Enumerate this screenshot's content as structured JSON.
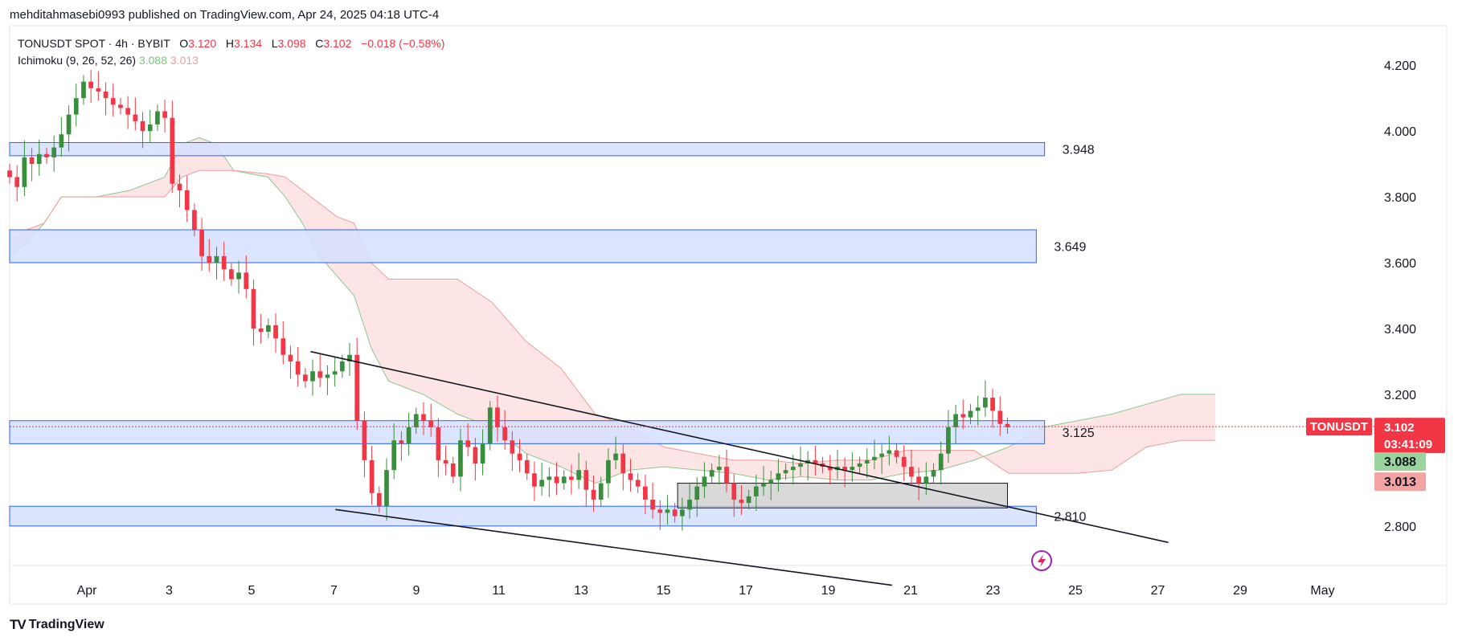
{
  "header": {
    "published": "mehditahmasebi0993 published on TradingView.com, Apr 24, 2025 04:18 UTC-4"
  },
  "legend": {
    "symbol": "TONUSDT SPOT · 4h · BYBIT",
    "o_label": "O",
    "o_value": "3.120",
    "h_label": "H",
    "h_value": "3.134",
    "l_label": "L",
    "l_value": "3.098",
    "c_label": "C",
    "c_value": "3.102",
    "change": "−0.018 (−0.58%)",
    "indicator": "Ichimoku (9, 26, 52, 26)",
    "ind_value1": "3.088",
    "ind_value2": "3.013"
  },
  "branding": {
    "name": "TradingView"
  },
  "colors": {
    "up": "#26a69a",
    "up_dark": "#388e3c",
    "down": "#f23645",
    "zone_fill": "#d6e0ff",
    "zone_stroke": "#2962ff",
    "cloud_bear": "#fbe0df",
    "cloud_bull": "#e3f3e3"
  },
  "chart_data": {
    "type": "candlestick",
    "symbol": "TONUSDT",
    "timeframe": "4h",
    "y_ticks": [
      "4.200",
      "4.000",
      "3.800",
      "3.600",
      "3.400",
      "3.200",
      "2.800"
    ],
    "x_ticks": [
      "Apr",
      "3",
      "5",
      "7",
      "9",
      "11",
      "13",
      "15",
      "17",
      "19",
      "21",
      "23",
      "25",
      "27",
      "29",
      "May"
    ],
    "ylim": [
      2.68,
      4.32
    ],
    "price_tag": {
      "label": "TONUSDT",
      "value": "3.102",
      "countdown": "03:41:09"
    },
    "cloud_tags": [
      "3.088",
      "3.013"
    ],
    "zones": [
      {
        "label": "3.948",
        "top": 3.965,
        "bottom": 3.925,
        "x_start": 0.0,
        "x_end": 25.1
      },
      {
        "label": "3.649",
        "top": 3.7,
        "bottom": 3.6,
        "x_start": 0.0,
        "x_end": 24.9
      },
      {
        "label": "3.125",
        "top": 3.12,
        "bottom": 3.05,
        "x_start": 0.0,
        "x_end": 25.1
      },
      {
        "label": "2.810",
        "top": 2.86,
        "bottom": 2.8,
        "x_start": 0.0,
        "x_end": 24.9
      }
    ],
    "consolidation_box": {
      "top": 2.93,
      "bottom": 2.855,
      "x_start": 16.2,
      "x_end": 24.2
    },
    "trendlines": [
      {
        "x1": 7.3,
        "y1": 3.33,
        "x2": 28.1,
        "y2": 2.75
      },
      {
        "x1": 7.9,
        "y1": 2.85,
        "x2": 21.4,
        "y2": 2.62
      }
    ],
    "close_series": [
      3.86,
      3.83,
      3.92,
      3.9,
      3.93,
      3.92,
      3.95,
      3.99,
      4.05,
      4.1,
      4.15,
      4.13,
      4.12,
      4.1,
      4.08,
      4.07,
      4.05,
      4.03,
      4.0,
      4.02,
      4.06,
      4.04,
      3.84,
      3.82,
      3.76,
      3.7,
      3.62,
      3.6,
      3.62,
      3.58,
      3.55,
      3.57,
      3.52,
      3.4,
      3.39,
      3.41,
      3.37,
      3.32,
      3.3,
      3.26,
      3.24,
      3.27,
      3.25,
      3.26,
      3.27,
      3.3,
      3.32,
      3.12,
      3.0,
      2.9,
      2.86,
      2.97,
      3.06,
      3.05,
      3.1,
      3.14,
      3.12,
      3.1,
      3.0,
      2.99,
      2.95,
      3.06,
      3.04,
      2.99,
      3.05,
      3.16,
      3.1,
      3.06,
      3.02,
      3.0,
      2.96,
      2.92,
      2.94,
      2.95,
      2.93,
      2.95,
      2.94,
      2.97,
      2.91,
      2.88,
      2.93,
      3.0,
      3.02,
      2.96,
      2.94,
      2.92,
      2.88,
      2.85,
      2.84,
      2.85,
      2.83,
      2.85,
      2.88,
      2.92,
      2.95,
      2.97,
      2.98,
      2.93,
      2.88,
      2.87,
      2.89,
      2.92,
      2.93,
      2.94,
      2.96,
      2.97,
      2.98,
      2.99,
      3.0,
      2.99,
      2.98,
      2.97,
      2.98,
      2.97,
      2.98,
      2.99,
      3.0,
      3.01,
      3.02,
      3.03,
      3.01,
      2.98,
      2.95,
      2.93,
      2.95,
      2.97,
      3.02,
      3.1,
      3.14,
      3.13,
      3.15,
      3.16,
      3.19,
      3.15,
      3.11,
      3.1
    ]
  }
}
